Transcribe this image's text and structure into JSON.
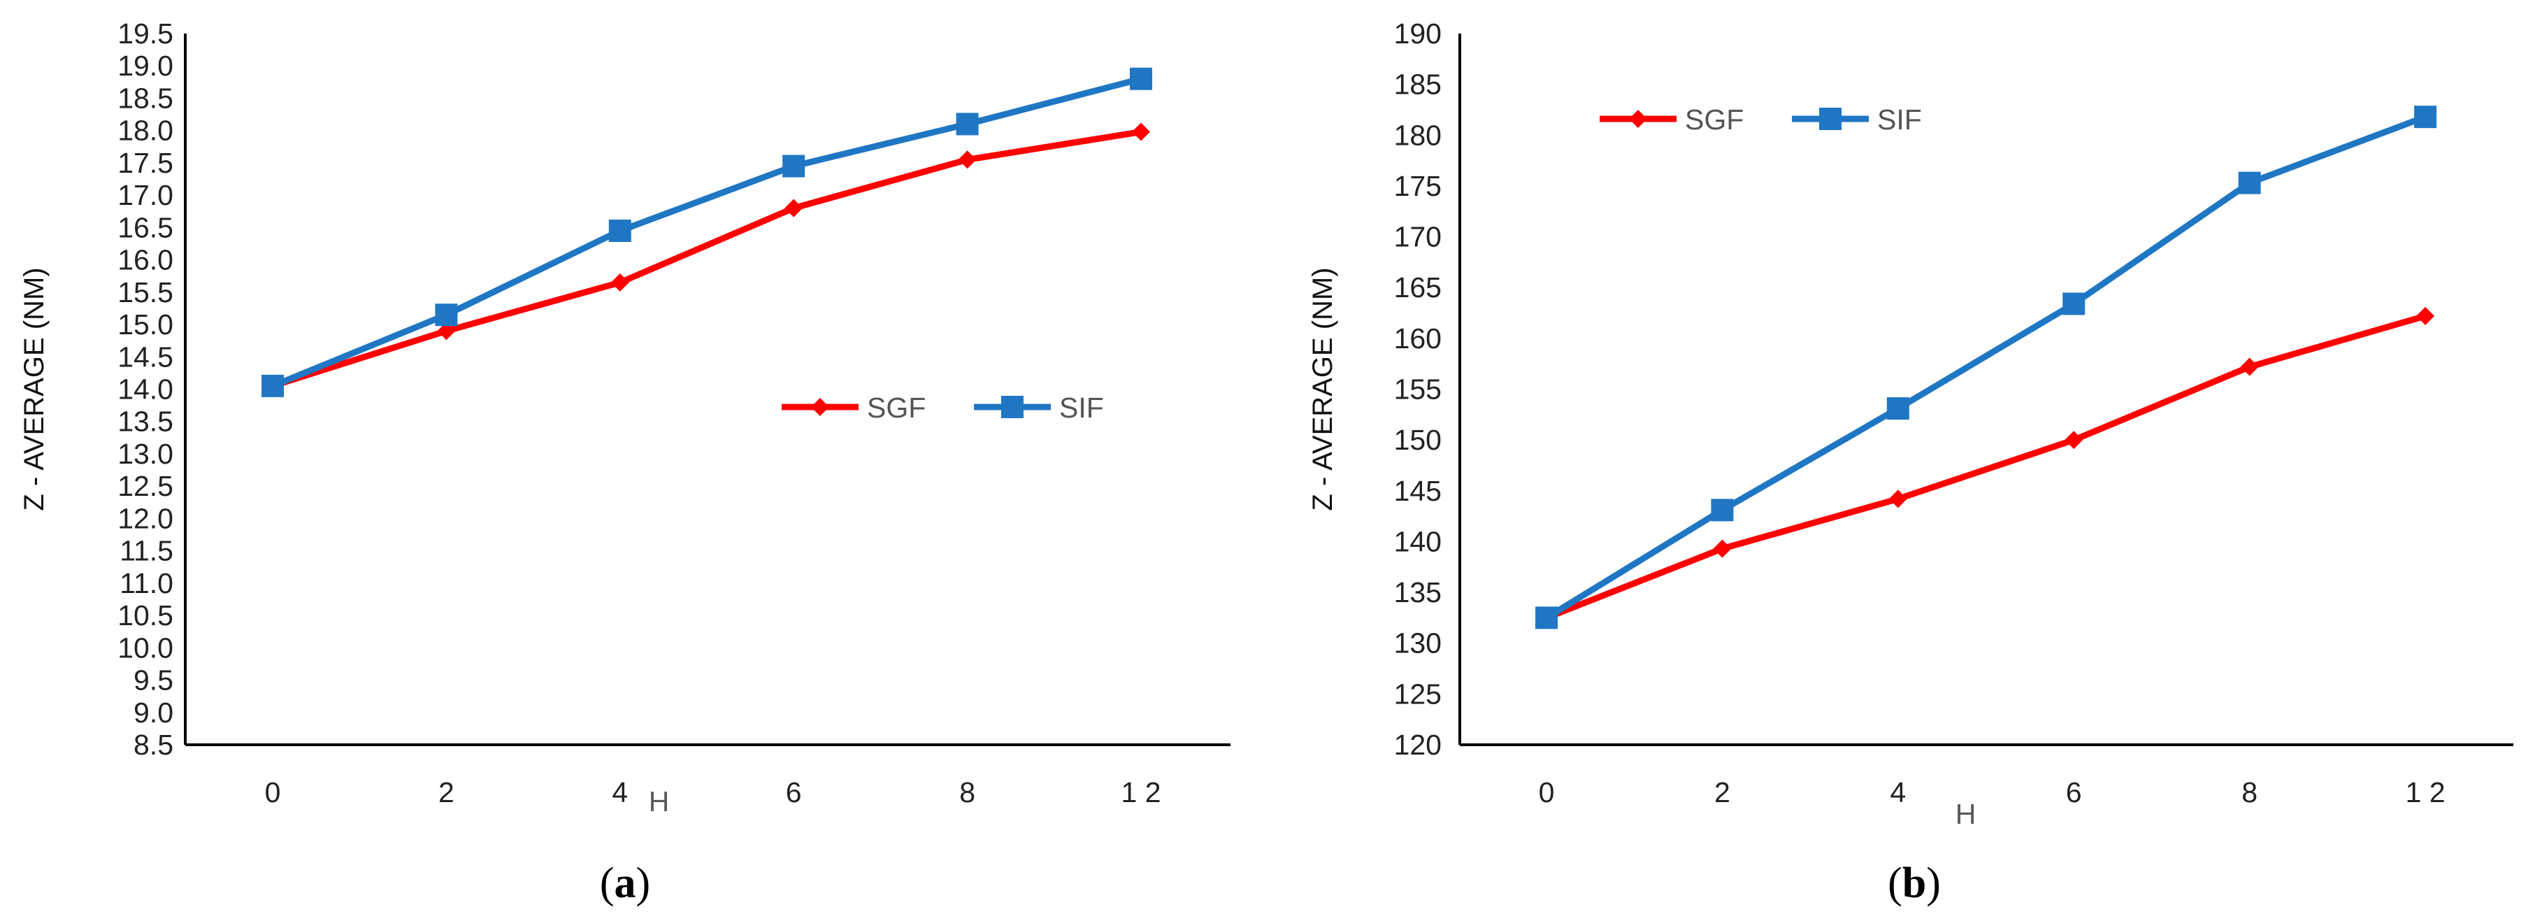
{
  "chart_data": [
    {
      "type": "line",
      "caption_letter": "a",
      "categories": [
        "0",
        "2",
        "4",
        "6",
        "8",
        "1 2"
      ],
      "series": [
        {
          "name": "SGF",
          "color": "#ff0000",
          "marker": "diamond",
          "values": [
            14.05,
            14.9,
            15.65,
            16.8,
            17.55,
            17.98
          ]
        },
        {
          "name": "SIF",
          "color": "#1f77c4",
          "marker": "square",
          "values": [
            14.05,
            15.15,
            16.45,
            17.45,
            18.1,
            18.8
          ]
        }
      ],
      "xlabel": "H",
      "ylabel": "Z - AVERAGE (NM)",
      "ylim": [
        8.5,
        19.5
      ],
      "yticks": [
        "8.5",
        "9.0",
        "9.5",
        "10.0",
        "10.5",
        "11.0",
        "11.5",
        "12.0",
        "12.5",
        "13.0",
        "13.5",
        "14.0",
        "14.5",
        "15.0",
        "15.5",
        "16.0",
        "16.5",
        "17.0",
        "17.5",
        "18.0",
        "18.5",
        "19.0",
        "19.5"
      ],
      "legend_position": "center-right",
      "grid": false
    },
    {
      "type": "line",
      "caption_letter": "b",
      "categories": [
        "0",
        "2",
        "4",
        "6",
        "8",
        "1 2"
      ],
      "series": [
        {
          "name": "SGF",
          "color": "#ff0000",
          "marker": "diamond",
          "values": [
            132.5,
            139.3,
            144.2,
            150.0,
            157.2,
            162.2
          ]
        },
        {
          "name": "SIF",
          "color": "#1f77c4",
          "marker": "square",
          "values": [
            132.5,
            143.1,
            153.1,
            163.4,
            175.3,
            181.8
          ]
        }
      ],
      "xlabel": "H",
      "ylabel": "Z - AVERAGE (NM)",
      "ylim": [
        120,
        190
      ],
      "yticks": [
        "120",
        "125",
        "130",
        "135",
        "140",
        "145",
        "150",
        "155",
        "160",
        "165",
        "170",
        "175",
        "180",
        "185",
        "190"
      ],
      "legend_position": "top-left",
      "grid": false
    }
  ]
}
